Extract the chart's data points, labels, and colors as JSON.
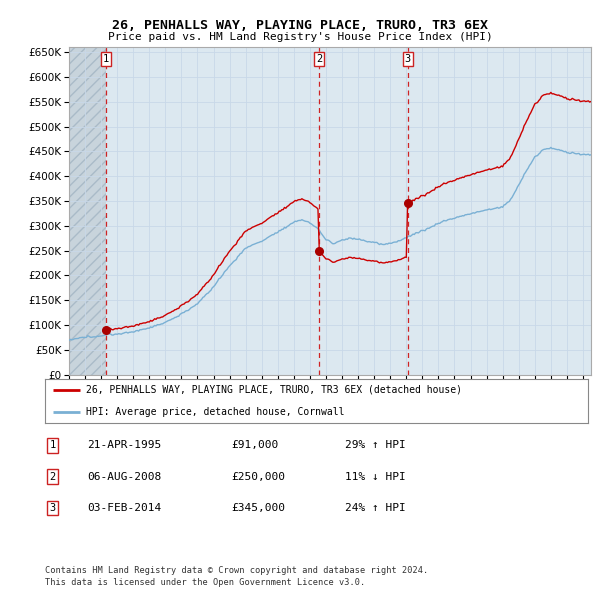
{
  "title": "26, PENHALLS WAY, PLAYING PLACE, TRURO, TR3 6EX",
  "subtitle": "Price paid vs. HM Land Registry's House Price Index (HPI)",
  "ylim": [
    0,
    660000
  ],
  "yticks": [
    0,
    50000,
    100000,
    150000,
    200000,
    250000,
    300000,
    350000,
    400000,
    450000,
    500000,
    550000,
    600000,
    650000
  ],
  "sale_times": [
    1995.29,
    2008.58,
    2014.08
  ],
  "sale_prices": [
    91000,
    250000,
    345000
  ],
  "sale_labels": [
    "1",
    "2",
    "3"
  ],
  "legend_house": "26, PENHALLS WAY, PLAYING PLACE, TRURO, TR3 6EX (detached house)",
  "legend_hpi": "HPI: Average price, detached house, Cornwall",
  "table_rows": [
    {
      "num": "1",
      "date": "21-APR-1995",
      "price": "£91,000",
      "hpi": "29% ↑ HPI"
    },
    {
      "num": "2",
      "date": "06-AUG-2008",
      "price": "£250,000",
      "hpi": "11% ↓ HPI"
    },
    {
      "num": "3",
      "date": "03-FEB-2014",
      "price": "£345,000",
      "hpi": "24% ↑ HPI"
    }
  ],
  "footer": "Contains HM Land Registry data © Crown copyright and database right 2024.\nThis data is licensed under the Open Government Licence v3.0.",
  "house_color": "#cc0000",
  "hpi_color": "#7ab0d4",
  "vline_color": "#cc0000",
  "bg_plot": "#dce8f0",
  "hatch_facecolor": "#c8d4dc",
  "hatch_pattern": "///",
  "hatch_edgecolor": "#aabbc8"
}
